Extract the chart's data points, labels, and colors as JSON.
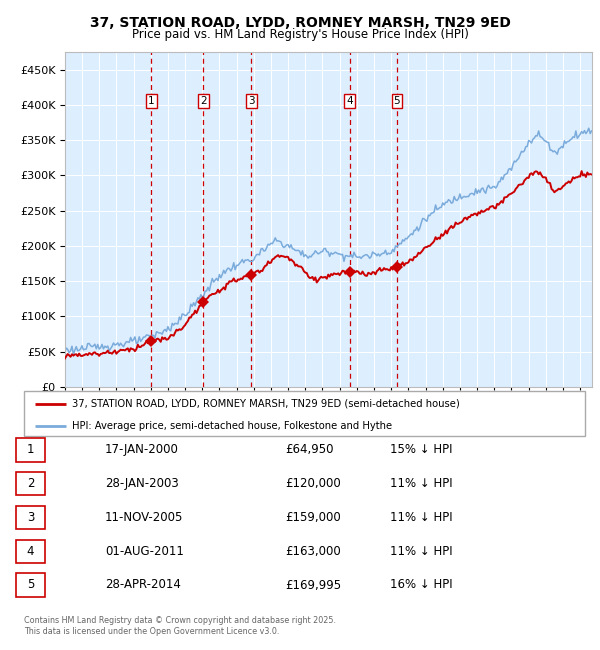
{
  "title": "37, STATION ROAD, LYDD, ROMNEY MARSH, TN29 9ED",
  "subtitle": "Price paid vs. HM Land Registry's House Price Index (HPI)",
  "legend_property": "37, STATION ROAD, LYDD, ROMNEY MARSH, TN29 9ED (semi-detached house)",
  "legend_hpi": "HPI: Average price, semi-detached house, Folkestone and Hythe",
  "footer": "Contains HM Land Registry data © Crown copyright and database right 2025.\nThis data is licensed under the Open Government Licence v3.0.",
  "transactions": [
    {
      "num": 1,
      "date": "17-JAN-2000",
      "date_val": 2000.04,
      "price": 64950,
      "pct": "15% ↓ HPI"
    },
    {
      "num": 2,
      "date": "28-JAN-2003",
      "date_val": 2003.07,
      "price": 120000,
      "pct": "11% ↓ HPI"
    },
    {
      "num": 3,
      "date": "11-NOV-2005",
      "date_val": 2005.86,
      "price": 159000,
      "pct": "11% ↓ HPI"
    },
    {
      "num": 4,
      "date": "01-AUG-2011",
      "date_val": 2011.58,
      "price": 163000,
      "pct": "11% ↓ HPI"
    },
    {
      "num": 5,
      "date": "28-APR-2014",
      "date_val": 2014.32,
      "price": 169995,
      "pct": "16% ↓ HPI"
    }
  ],
  "prices_display": [
    "£64,950",
    "£120,000",
    "£159,000",
    "£163,000",
    "£169,995"
  ],
  "property_color": "#cc0000",
  "hpi_color": "#7aabdb",
  "background_color": "#ddeeff",
  "grid_color": "#ffffff",
  "vline_color": "#cc0000",
  "ylim": [
    0,
    475000
  ],
  "xlim_start": 1995.0,
  "xlim_end": 2025.7,
  "yticks": [
    0,
    50000,
    100000,
    150000,
    200000,
    250000,
    300000,
    350000,
    400000,
    450000
  ],
  "hpi_anchors": [
    [
      1995.0,
      52000
    ],
    [
      1996.0,
      54000
    ],
    [
      1997.0,
      57000
    ],
    [
      1998.0,
      60000
    ],
    [
      1999.0,
      64000
    ],
    [
      2000.0,
      70000
    ],
    [
      2001.0,
      82000
    ],
    [
      2002.0,
      102000
    ],
    [
      2003.0,
      130000
    ],
    [
      2004.0,
      158000
    ],
    [
      2005.0,
      173000
    ],
    [
      2006.0,
      182000
    ],
    [
      2007.3,
      208000
    ],
    [
      2008.0,
      200000
    ],
    [
      2008.7,
      190000
    ],
    [
      2009.2,
      185000
    ],
    [
      2009.7,
      190000
    ],
    [
      2010.3,
      193000
    ],
    [
      2011.0,
      188000
    ],
    [
      2012.0,
      184000
    ],
    [
      2013.0,
      187000
    ],
    [
      2014.0,
      193000
    ],
    [
      2015.0,
      212000
    ],
    [
      2016.0,
      238000
    ],
    [
      2017.0,
      258000
    ],
    [
      2018.0,
      270000
    ],
    [
      2019.0,
      278000
    ],
    [
      2020.0,
      282000
    ],
    [
      2021.0,
      310000
    ],
    [
      2022.0,
      348000
    ],
    [
      2022.6,
      358000
    ],
    [
      2023.0,
      348000
    ],
    [
      2023.5,
      332000
    ],
    [
      2024.0,
      342000
    ],
    [
      2024.5,
      355000
    ],
    [
      2025.3,
      362000
    ]
  ],
  "prop_anchors": [
    [
      1995.0,
      44000
    ],
    [
      1996.0,
      46000
    ],
    [
      1997.0,
      47000
    ],
    [
      1998.0,
      50000
    ],
    [
      1999.0,
      54000
    ],
    [
      2000.04,
      64950
    ],
    [
      2001.0,
      68000
    ],
    [
      2002.0,
      88000
    ],
    [
      2003.07,
      120000
    ],
    [
      2004.0,
      138000
    ],
    [
      2005.0,
      152000
    ],
    [
      2005.86,
      159000
    ],
    [
      2006.3,
      163000
    ],
    [
      2007.0,
      178000
    ],
    [
      2007.5,
      188000
    ],
    [
      2008.0,
      183000
    ],
    [
      2009.0,
      162000
    ],
    [
      2009.5,
      152000
    ],
    [
      2010.0,
      155000
    ],
    [
      2011.0,
      161000
    ],
    [
      2011.58,
      163000
    ],
    [
      2012.0,
      162000
    ],
    [
      2012.5,
      159000
    ],
    [
      2013.0,
      162000
    ],
    [
      2014.32,
      169995
    ],
    [
      2015.0,
      176000
    ],
    [
      2016.0,
      197000
    ],
    [
      2017.0,
      217000
    ],
    [
      2018.0,
      234000
    ],
    [
      2019.0,
      247000
    ],
    [
      2020.0,
      254000
    ],
    [
      2021.0,
      274000
    ],
    [
      2022.0,
      299000
    ],
    [
      2022.5,
      305000
    ],
    [
      2023.0,
      294000
    ],
    [
      2023.5,
      277000
    ],
    [
      2024.0,
      284000
    ],
    [
      2024.5,
      293000
    ],
    [
      2025.3,
      302000
    ]
  ]
}
